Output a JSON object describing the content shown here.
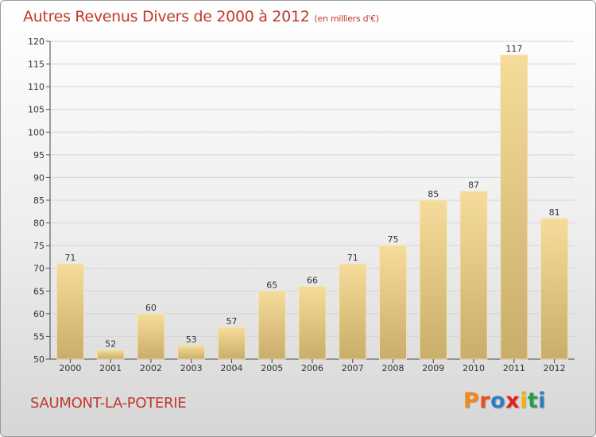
{
  "header": {
    "title": "Autres Revenus Divers de 2000 à 2012",
    "unit": "(en milliers d'€)"
  },
  "footer": {
    "place": "SAUMONT-LA-POTERIE",
    "brand_letters": [
      "P",
      "r",
      "o",
      "x",
      "i",
      "t",
      "i"
    ],
    "brand_colors": [
      "#f08a1c",
      "#e94e1b",
      "#2a7fc1",
      "#e32119",
      "#f4b400",
      "#2a9d43",
      "#2a7fc1"
    ]
  },
  "colors": {
    "title": "#c0392b",
    "bar_light": "#f6dc9a",
    "bar_dark": "#c9ad6a"
  },
  "chart_data": {
    "type": "bar",
    "categories": [
      "2000",
      "2001",
      "2002",
      "2003",
      "2004",
      "2005",
      "2006",
      "2007",
      "2008",
      "2009",
      "2010",
      "2011",
      "2012"
    ],
    "values": [
      71,
      52,
      60,
      53,
      57,
      65,
      66,
      71,
      75,
      85,
      87,
      117,
      81
    ],
    "ylim": [
      50,
      120
    ],
    "yticks": [
      50,
      55,
      60,
      65,
      70,
      75,
      80,
      85,
      90,
      95,
      100,
      105,
      110,
      115,
      120
    ],
    "grid": true,
    "data_labels": true
  }
}
